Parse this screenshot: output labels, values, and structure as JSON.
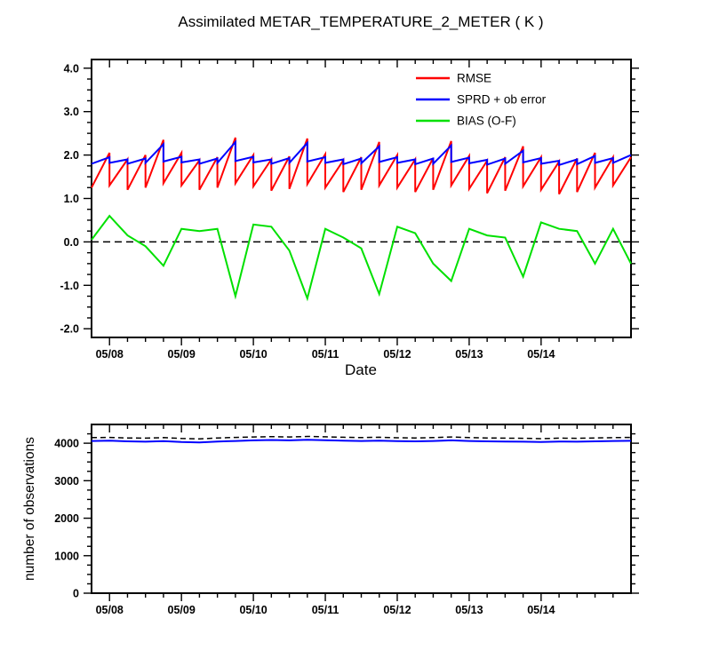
{
  "chart_data": [
    {
      "type": "line",
      "title": "Assimilated METAR_TEMPERATURE_2_METER ( K )",
      "xlabel": "Date",
      "ylabel": "",
      "xlim": [
        0,
        180
      ],
      "ylim": [
        -2.2,
        4.2
      ],
      "x_major_ticks": [
        6,
        30,
        54,
        78,
        102,
        126,
        150
      ],
      "x_major_labels": [
        "05/08",
        "05/09",
        "05/10",
        "05/11",
        "05/12",
        "05/13",
        "05/14"
      ],
      "x_minor_step": 6,
      "y_major_values": [
        -2,
        -1,
        0,
        1,
        2,
        3,
        4
      ],
      "y_major_labels": [
        "-2.0",
        "-1.0",
        "0.0",
        "1.0",
        "2.0",
        "3.0",
        "4.0"
      ],
      "y_minor_step": 0.25,
      "zero_line": true,
      "zero_line_color": "#000000",
      "legend_position": "upper-right-inside",
      "series": [
        {
          "id": "rmse",
          "name": "RMSE",
          "color": "#ff0000",
          "width": 2,
          "points": [
            [
              0,
              1.25
            ],
            [
              6,
              2.05
            ],
            [
              6,
              1.3
            ],
            [
              12,
              1.9
            ],
            [
              12,
              1.2
            ],
            [
              18,
              2.0
            ],
            [
              18,
              1.25
            ],
            [
              24,
              2.35
            ],
            [
              24,
              1.35
            ],
            [
              30,
              2.05
            ],
            [
              30,
              1.3
            ],
            [
              36,
              1.88
            ],
            [
              36,
              1.2
            ],
            [
              42,
              1.95
            ],
            [
              42,
              1.25
            ],
            [
              48,
              2.4
            ],
            [
              48,
              1.35
            ],
            [
              54,
              2.0
            ],
            [
              54,
              1.28
            ],
            [
              60,
              1.9
            ],
            [
              60,
              1.18
            ],
            [
              66,
              1.97
            ],
            [
              66,
              1.22
            ],
            [
              72,
              2.38
            ],
            [
              72,
              1.33
            ],
            [
              78,
              2.02
            ],
            [
              78,
              1.25
            ],
            [
              84,
              1.88
            ],
            [
              84,
              1.15
            ],
            [
              90,
              1.95
            ],
            [
              90,
              1.2
            ],
            [
              96,
              2.3
            ],
            [
              96,
              1.3
            ],
            [
              102,
              2.0
            ],
            [
              102,
              1.25
            ],
            [
              108,
              1.9
            ],
            [
              108,
              1.15
            ],
            [
              114,
              1.93
            ],
            [
              114,
              1.2
            ],
            [
              120,
              2.32
            ],
            [
              120,
              1.3
            ],
            [
              126,
              1.98
            ],
            [
              126,
              1.22
            ],
            [
              132,
              1.87
            ],
            [
              132,
              1.12
            ],
            [
              138,
              1.95
            ],
            [
              138,
              1.18
            ],
            [
              144,
              2.2
            ],
            [
              144,
              1.28
            ],
            [
              150,
              1.95
            ],
            [
              150,
              1.2
            ],
            [
              156,
              1.85
            ],
            [
              156,
              1.1
            ],
            [
              162,
              1.92
            ],
            [
              162,
              1.15
            ],
            [
              168,
              2.05
            ],
            [
              168,
              1.25
            ],
            [
              174,
              1.95
            ],
            [
              174,
              1.3
            ],
            [
              180,
              1.95
            ]
          ]
        },
        {
          "id": "sprd",
          "name": "SPRD + ob error",
          "color": "#0000ff",
          "width": 2,
          "points": [
            [
              0,
              1.8
            ],
            [
              6,
              1.95
            ],
            [
              6,
              1.82
            ],
            [
              12,
              1.9
            ],
            [
              12,
              1.8
            ],
            [
              18,
              1.92
            ],
            [
              18,
              1.82
            ],
            [
              24,
              2.25
            ],
            [
              24,
              1.85
            ],
            [
              30,
              1.96
            ],
            [
              30,
              1.83
            ],
            [
              36,
              1.9
            ],
            [
              36,
              1.8
            ],
            [
              42,
              1.92
            ],
            [
              42,
              1.82
            ],
            [
              48,
              2.3
            ],
            [
              48,
              1.86
            ],
            [
              54,
              1.96
            ],
            [
              54,
              1.83
            ],
            [
              60,
              1.9
            ],
            [
              60,
              1.8
            ],
            [
              66,
              1.93
            ],
            [
              66,
              1.82
            ],
            [
              72,
              2.28
            ],
            [
              72,
              1.85
            ],
            [
              78,
              1.95
            ],
            [
              78,
              1.82
            ],
            [
              84,
              1.9
            ],
            [
              84,
              1.79
            ],
            [
              90,
              1.92
            ],
            [
              90,
              1.81
            ],
            [
              96,
              2.2
            ],
            [
              96,
              1.84
            ],
            [
              102,
              1.95
            ],
            [
              102,
              1.82
            ],
            [
              108,
              1.9
            ],
            [
              108,
              1.79
            ],
            [
              114,
              1.92
            ],
            [
              114,
              1.8
            ],
            [
              120,
              2.22
            ],
            [
              120,
              1.84
            ],
            [
              126,
              1.94
            ],
            [
              126,
              1.81
            ],
            [
              132,
              1.89
            ],
            [
              132,
              1.78
            ],
            [
              138,
              1.92
            ],
            [
              138,
              1.8
            ],
            [
              144,
              2.1
            ],
            [
              144,
              1.83
            ],
            [
              150,
              1.93
            ],
            [
              150,
              1.8
            ],
            [
              156,
              1.87
            ],
            [
              156,
              1.77
            ],
            [
              162,
              1.9
            ],
            [
              162,
              1.79
            ],
            [
              168,
              1.98
            ],
            [
              168,
              1.82
            ],
            [
              174,
              1.93
            ],
            [
              174,
              1.82
            ],
            [
              180,
              2.0
            ]
          ]
        },
        {
          "id": "bias",
          "name": "BIAS (O-F)",
          "color": "#00e000",
          "width": 2,
          "points": [
            [
              0,
              0.05
            ],
            [
              6,
              0.6
            ],
            [
              12,
              0.15
            ],
            [
              18,
              -0.1
            ],
            [
              24,
              -0.55
            ],
            [
              30,
              0.3
            ],
            [
              36,
              0.25
            ],
            [
              42,
              0.3
            ],
            [
              48,
              -1.25
            ],
            [
              54,
              0.4
            ],
            [
              60,
              0.35
            ],
            [
              66,
              -0.2
            ],
            [
              72,
              -1.3
            ],
            [
              78,
              0.3
            ],
            [
              84,
              0.1
            ],
            [
              90,
              -0.15
            ],
            [
              96,
              -1.2
            ],
            [
              102,
              0.35
            ],
            [
              108,
              0.2
            ],
            [
              114,
              -0.5
            ],
            [
              120,
              -0.9
            ],
            [
              126,
              0.3
            ],
            [
              132,
              0.15
            ],
            [
              138,
              0.1
            ],
            [
              144,
              -0.8
            ],
            [
              150,
              0.45
            ],
            [
              156,
              0.3
            ],
            [
              162,
              0.25
            ],
            [
              168,
              -0.5
            ],
            [
              174,
              0.3
            ],
            [
              180,
              -0.5
            ]
          ]
        }
      ]
    },
    {
      "type": "line",
      "title": "",
      "xlabel": "",
      "ylabel": "number of observations",
      "xlim": [
        0,
        180
      ],
      "ylim": [
        0,
        4500
      ],
      "x_major_ticks": [
        6,
        30,
        54,
        78,
        102,
        126,
        150
      ],
      "x_major_labels": [
        "05/08",
        "05/09",
        "05/10",
        "05/11",
        "05/12",
        "05/13",
        "05/14"
      ],
      "x_minor_step": 6,
      "y_major_values": [
        0,
        1000,
        2000,
        3000,
        4000
      ],
      "y_major_labels": [
        "0",
        "1000",
        "2000",
        "3000",
        "4000"
      ],
      "y_minor_step": 250,
      "zero_line": false,
      "series": [
        {
          "id": "obs-count-dashed",
          "color": "#000000",
          "width": 1.5,
          "dash": "6,4",
          "x_start": 0,
          "x_step": 6,
          "values": [
            4150,
            4155,
            4140,
            4135,
            4150,
            4125,
            4115,
            4140,
            4155,
            4165,
            4175,
            4165,
            4180,
            4170,
            4160,
            4150,
            4160,
            4145,
            4140,
            4150,
            4165,
            4150,
            4140,
            4135,
            4130,
            4120,
            4135,
            4130,
            4140,
            4150,
            4155
          ]
        },
        {
          "id": "obs-count-solid",
          "color": "#0000ff",
          "width": 2,
          "x_start": 0,
          "x_step": 6,
          "values": [
            4060,
            4070,
            4050,
            4040,
            4055,
            4030,
            4020,
            4045,
            4060,
            4075,
            4085,
            4075,
            4090,
            4080,
            4070,
            4060,
            4070,
            4055,
            4050,
            4060,
            4075,
            4060,
            4050,
            4045,
            4040,
            4030,
            4045,
            4040,
            4050,
            4060,
            4065
          ]
        }
      ]
    }
  ]
}
